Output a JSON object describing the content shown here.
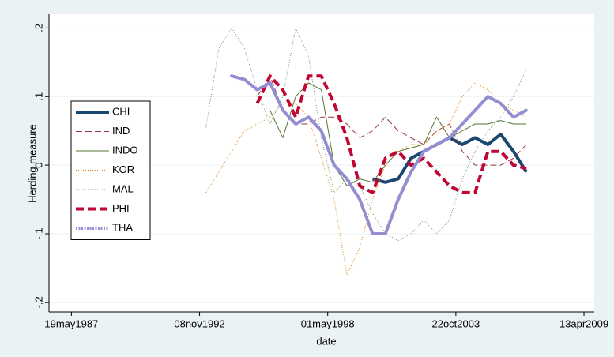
{
  "chart_data": {
    "type": "line",
    "x_label": "date",
    "y_label": "Herding measure",
    "x": [
      12100,
      12300,
      12500,
      12700,
      12900,
      13100,
      13300,
      13500,
      13700,
      13900,
      14100,
      14300,
      14500,
      14700,
      14900,
      15100,
      15300,
      15500,
      15700,
      15900,
      16100,
      16300,
      16500,
      16700,
      16900,
      17100
    ],
    "xlim": [
      9650,
      18160
    ],
    "xticks": [
      {
        "value": 10000,
        "label": "19may1987"
      },
      {
        "value": 12000,
        "label": "08nov1992"
      },
      {
        "value": 14000,
        "label": "01may1998"
      },
      {
        "value": 16000,
        "label": "22oct2003"
      },
      {
        "value": 18000,
        "label": "13apr2009"
      }
    ],
    "ylim": [
      -0.214,
      0.22
    ],
    "yticks": [
      {
        "value": -0.2,
        "label": "-.2"
      },
      {
        "value": -0.1,
        "label": "-.1"
      },
      0,
      {
        "value": 0.1,
        "label": ".1"
      },
      {
        "value": 0.2,
        "label": ".2"
      }
    ],
    "grid": true,
    "legend": "left",
    "series": [
      {
        "name": "CHI",
        "color": "#1a476f",
        "dash": "solid",
        "weight": "thick",
        "values": [
          null,
          null,
          null,
          null,
          null,
          null,
          null,
          null,
          null,
          null,
          null,
          null,
          null,
          -0.02,
          -0.025,
          -0.02,
          0.01,
          0.02,
          0.03,
          0.04,
          0.03,
          0.04,
          0.03,
          0.045,
          0.02,
          -0.01
        ]
      },
      {
        "name": "IND",
        "color": "#90353b",
        "dash": "dash",
        "weight": "thin",
        "values": [
          null,
          null,
          null,
          null,
          0.1,
          0.13,
          0.08,
          0.06,
          0.06,
          0.07,
          0.07,
          0.06,
          0.04,
          0.05,
          0.07,
          0.05,
          0.04,
          0.03,
          0.05,
          0.06,
          0.02,
          0.0,
          0.0,
          0.0,
          0.01,
          0.03
        ]
      },
      {
        "name": "INDO",
        "color": "#55752f",
        "dash": "solid",
        "weight": "thin",
        "values": [
          null,
          null,
          null,
          null,
          null,
          0.08,
          0.04,
          0.1,
          0.12,
          0.11,
          0.0,
          -0.03,
          -0.02,
          -0.025,
          0.0,
          0.02,
          0.025,
          0.03,
          0.07,
          0.04,
          0.05,
          0.06,
          0.06,
          0.065,
          0.06,
          0.06
        ]
      },
      {
        "name": "KOR",
        "color": "#e37e00",
        "dash": "dot",
        "weight": "thin",
        "values": [
          -0.04,
          -0.01,
          0.02,
          0.05,
          0.06,
          0.07,
          0.09,
          0.09,
          0.07,
          0.01,
          -0.05,
          -0.16,
          -0.12,
          -0.05,
          0.0,
          0.02,
          0.03,
          0.03,
          0.05,
          0.06,
          0.1,
          0.12,
          0.11,
          0.09,
          0.08,
          0.07
        ]
      },
      {
        "name": "MAL",
        "color": "#6e8e84",
        "dash": "dot",
        "weight": "thin",
        "values": [
          0.055,
          0.17,
          0.2,
          0.17,
          0.11,
          0.06,
          0.1,
          0.2,
          0.16,
          0.04,
          -0.04,
          -0.02,
          -0.03,
          -0.07,
          -0.1,
          -0.11,
          -0.1,
          -0.08,
          -0.1,
          -0.08,
          -0.02,
          0.02,
          0.05,
          0.07,
          0.1,
          0.14
        ]
      },
      {
        "name": "PHI",
        "color": "#c10534",
        "dash": "dash",
        "weight": "thick",
        "values": [
          null,
          null,
          null,
          null,
          0.09,
          0.13,
          0.11,
          0.07,
          0.13,
          0.13,
          0.09,
          0.04,
          -0.03,
          -0.04,
          0.01,
          0.02,
          0.0,
          0.01,
          -0.01,
          -0.03,
          -0.04,
          -0.04,
          0.02,
          0.02,
          0.0,
          -0.005
        ]
      },
      {
        "name": "THA",
        "color": "#938dd2",
        "dash": "dot",
        "weight": "thick",
        "values": [
          null,
          null,
          0.13,
          0.125,
          0.11,
          0.12,
          0.08,
          0.06,
          0.07,
          0.05,
          0.0,
          -0.02,
          -0.05,
          -0.1,
          -0.1,
          -0.05,
          -0.01,
          0.02,
          0.03,
          0.04,
          0.06,
          0.08,
          0.1,
          0.09,
          0.07,
          0.08
        ]
      }
    ]
  }
}
